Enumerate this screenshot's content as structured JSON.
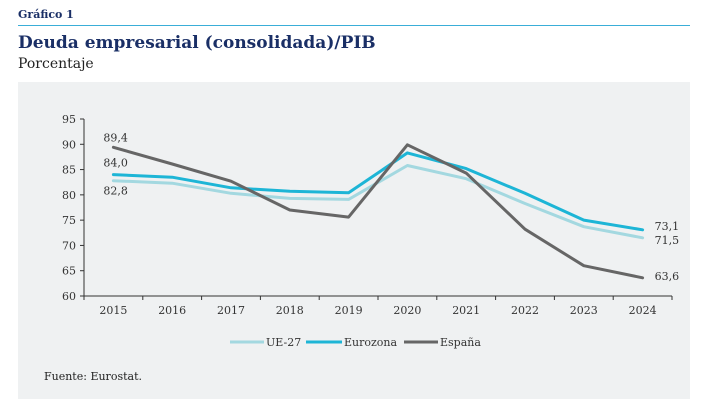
{
  "header": {
    "figure_label": "Gráfico 1",
    "title": "Deuda empresarial (consolidada)/PIB",
    "subtitle": "Porcentaje"
  },
  "footer": {
    "source": "Fuente: Eurostat."
  },
  "colors": {
    "ue27": "#a3d8e0",
    "eurozona": "#1db5d6",
    "espana": "#666666",
    "panel_bg": "#eff1f2",
    "accent": "#1a2f66"
  },
  "chart_data": {
    "type": "line",
    "title": "Deuda empresarial (consolidada)/PIB",
    "subtitle": "Porcentaje",
    "xlabel": "",
    "ylabel": "",
    "x": [
      "2015",
      "2016",
      "2017",
      "2018",
      "2019",
      "2020",
      "2021",
      "2022",
      "2023",
      "2024"
    ],
    "ylim": [
      60,
      95
    ],
    "yticks": [
      60,
      65,
      70,
      75,
      80,
      85,
      90,
      95
    ],
    "grid": false,
    "legend_position": "bottom",
    "series": [
      {
        "name": "UE-27",
        "color": "#a3d8e0",
        "values": [
          82.8,
          82.3,
          80.3,
          79.3,
          79.1,
          85.8,
          83.2,
          78.3,
          73.7,
          71.5
        ]
      },
      {
        "name": "Eurozona",
        "color": "#1db5d6",
        "values": [
          84.0,
          83.5,
          81.4,
          80.7,
          80.4,
          88.3,
          85.2,
          80.3,
          75.0,
          73.1
        ]
      },
      {
        "name": "España",
        "color": "#666666",
        "values": [
          89.4,
          86.1,
          82.7,
          77.0,
          75.6,
          89.9,
          84.3,
          73.2,
          66.0,
          63.6
        ]
      }
    ],
    "annotations": [
      {
        "series": "España",
        "x": "2015",
        "text": "89,4"
      },
      {
        "series": "Eurozona",
        "x": "2015",
        "text": "84,0"
      },
      {
        "series": "UE-27",
        "x": "2015",
        "text": "82,8"
      },
      {
        "series": "Eurozona",
        "x": "2024",
        "text": "73,1"
      },
      {
        "series": "UE-27",
        "x": "2024",
        "text": "71,5"
      },
      {
        "series": "España",
        "x": "2024",
        "text": "63,6"
      }
    ]
  }
}
